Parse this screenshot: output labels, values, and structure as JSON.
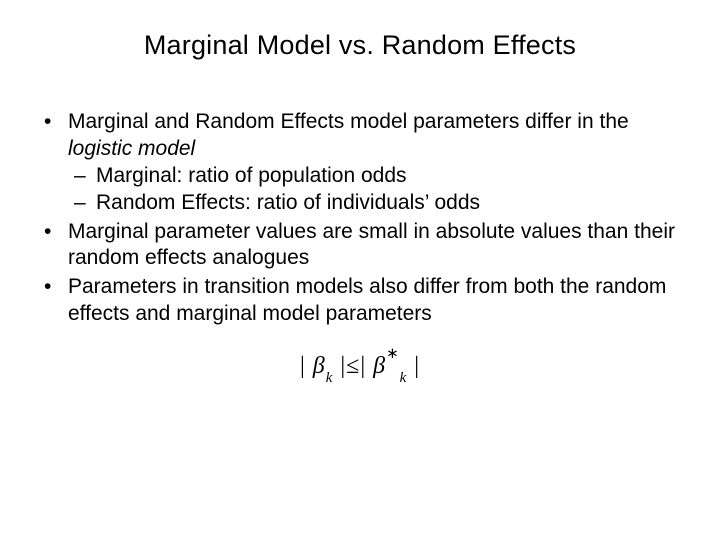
{
  "slide": {
    "title": "Marginal Model vs. Random Effects",
    "bullets": [
      {
        "text_pre": "Marginal and Random Effects model parameters differ in the ",
        "text_ital": "logistic model",
        "sub": [
          "Marginal: ratio of population odds",
          "Random Effects: ratio of individuals’ odds"
        ]
      },
      {
        "text": "Marginal parameter values are small in absolute values than their random effects analogues"
      },
      {
        "text": "Parameters in transition models also differ from both the random effects and marginal model parameters"
      }
    ],
    "formula": {
      "bar_l1": "|",
      "beta1": "β",
      "sub1": "k",
      "bar_r1": "|",
      "op": "≤",
      "bar_l2": "|",
      "beta2": "β",
      "sup2": "∗",
      "sub2": "k",
      "bar_r2": "|"
    }
  },
  "style": {
    "background_color": "#ffffff",
    "text_color": "#000000",
    "title_fontsize": 27,
    "body_fontsize": 21,
    "formula_fontsize": 24
  }
}
